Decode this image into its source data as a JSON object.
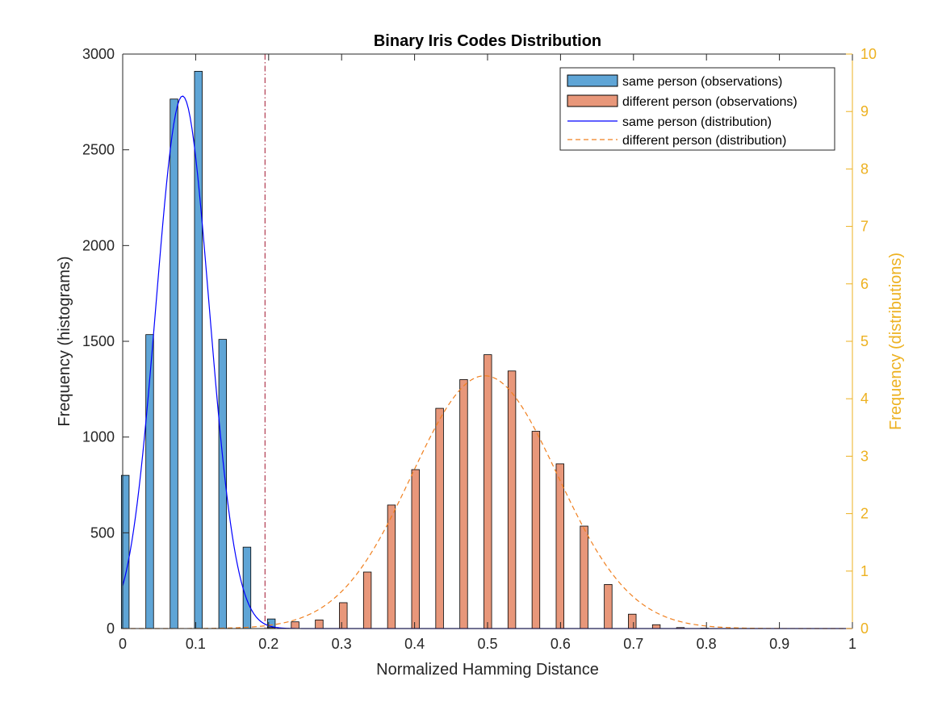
{
  "chart_data": {
    "type": "bar",
    "title": "Binary Iris Codes Distribution",
    "xlabel": "Normalized Hamming Distance",
    "ylabel": "Frequency (histograms)",
    "ylabel_right": "Frequency (distributions)",
    "xlim": [
      0,
      1
    ],
    "ylim": [
      0,
      3000
    ],
    "ylim_right": [
      0,
      10
    ],
    "xticks": [
      0,
      0.1,
      0.2,
      0.3,
      0.4,
      0.5,
      0.6,
      0.7,
      0.8,
      0.9,
      1
    ],
    "xtick_labels": [
      "0",
      "0.1",
      "0.2",
      "0.3",
      "0.4",
      "0.5",
      "0.6",
      "0.7",
      "0.8",
      "0.9",
      "1"
    ],
    "yticks": [
      0,
      500,
      1000,
      1500,
      2000,
      2500,
      3000
    ],
    "ytick_labels": [
      "0",
      "500",
      "1000",
      "1500",
      "2000",
      "2500",
      "3000"
    ],
    "yticks_right": [
      0,
      1,
      2,
      3,
      4,
      5,
      6,
      7,
      8,
      9,
      10
    ],
    "ytick_labels_right": [
      "0",
      "1",
      "2",
      "3",
      "4",
      "5",
      "6",
      "7",
      "8",
      "9",
      "10"
    ],
    "grid": false,
    "legend_position": "top-right",
    "threshold_line_x": 0.195,
    "bin_width": 0.0333,
    "bar_width": 0.0106,
    "series": [
      {
        "name": "same person (observations)",
        "kind": "bar",
        "axis": "left",
        "color": "#5FA5D6",
        "x": [
          0.0035,
          0.037,
          0.0703,
          0.1037,
          0.137,
          0.1703,
          0.2037
        ],
        "values": [
          800,
          1535,
          2765,
          2910,
          1510,
          425,
          50
        ]
      },
      {
        "name": "different person (observations)",
        "kind": "bar",
        "axis": "left",
        "color": "#E8977A",
        "x": [
          0.2033,
          0.2363,
          0.2693,
          0.3023,
          0.3353,
          0.3683,
          0.4013,
          0.4343,
          0.4673,
          0.5003,
          0.5333,
          0.5663,
          0.5993,
          0.6323,
          0.6653,
          0.6983,
          0.7313,
          0.7643,
          0.7973
        ],
        "values": [
          5,
          35,
          45,
          135,
          295,
          645,
          830,
          1150,
          1300,
          1430,
          1345,
          1030,
          860,
          535,
          230,
          75,
          20,
          5,
          2
        ]
      },
      {
        "name": "same person (distribution)",
        "kind": "line",
        "axis": "right",
        "color": "#0000FF",
        "dash": "solid",
        "gaussian": {
          "mean": 0.082,
          "sd": 0.0365,
          "peak": 9.27
        }
      },
      {
        "name": "different person (distribution)",
        "kind": "line",
        "axis": "right",
        "color": "#F08020",
        "dash": "dashed",
        "gaussian": {
          "mean": 0.496,
          "sd": 0.1,
          "peak": 4.4
        }
      }
    ]
  }
}
